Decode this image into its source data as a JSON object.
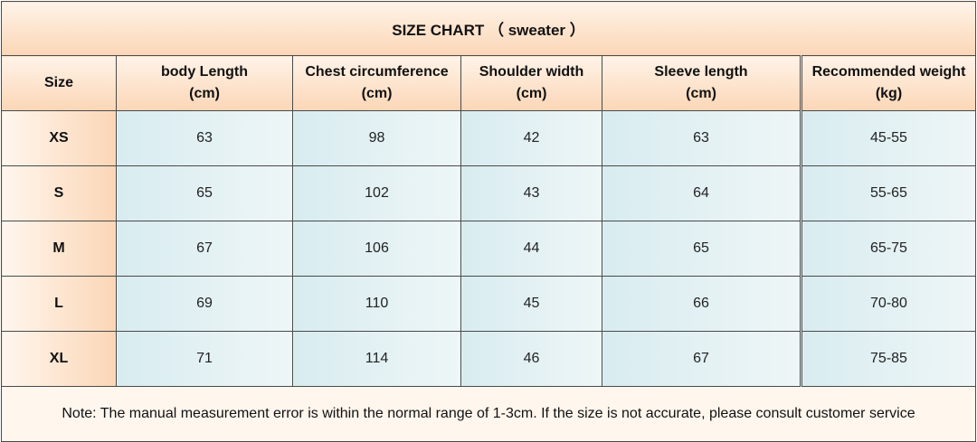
{
  "title": "SIZE CHART （ sweater ）",
  "headers": [
    {
      "label": "Size",
      "unit": ""
    },
    {
      "label": "body Length",
      "unit": "(cm)"
    },
    {
      "label": "Chest circumference",
      "unit": "(cm)"
    },
    {
      "label": "Shoulder width",
      "unit": "(cm)"
    },
    {
      "label": "Sleeve length",
      "unit": "(cm)"
    },
    {
      "label": "Recommended weight",
      "unit": "(kg)"
    }
  ],
  "rows": [
    {
      "size": "XS",
      "values": [
        "63",
        "98",
        "42",
        "63",
        "45-55"
      ]
    },
    {
      "size": "S",
      "values": [
        "65",
        "102",
        "43",
        "64",
        "55-65"
      ]
    },
    {
      "size": "M",
      "values": [
        "67",
        "106",
        "44",
        "65",
        "65-75"
      ]
    },
    {
      "size": "L",
      "values": [
        "69",
        "110",
        "45",
        "66",
        "70-80"
      ]
    },
    {
      "size": "XL",
      "values": [
        "71",
        "114",
        "46",
        "67",
        "75-85"
      ]
    }
  ],
  "note": "Note: The manual measurement error is within the normal range of 1-3cm. If the size is not accurate, please consult customer service",
  "colors": {
    "header_peach": "#fbd6b6",
    "value_blue": "#d8ecf0",
    "border": "#4a4a4a"
  }
}
